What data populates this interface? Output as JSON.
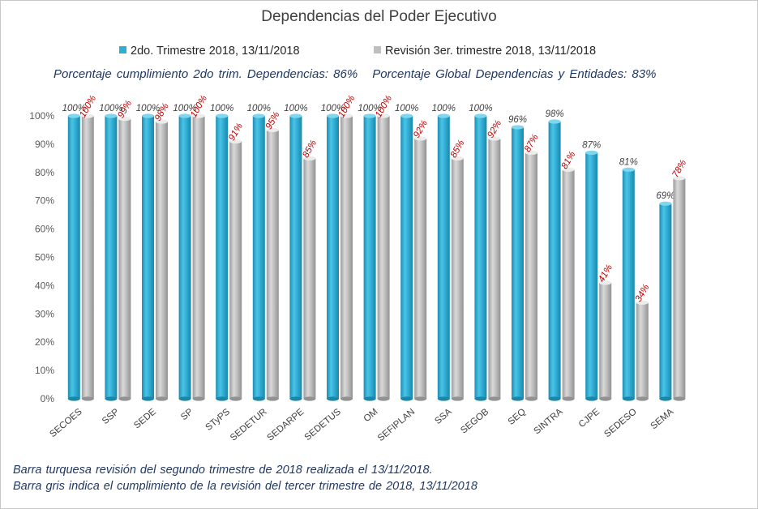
{
  "chart_data": {
    "type": "bar",
    "title": "Dependencias del Poder Ejecutivo",
    "categories": [
      "SECOES",
      "SSP",
      "SEDE",
      "SP",
      "STyPS",
      "SEDETUR",
      "SEDARPE",
      "SEDETUS",
      "OM",
      "SEFIPLAN",
      "SSA",
      "SEGOB",
      "SEQ",
      "SINTRA",
      "CJPE",
      "SEDESO",
      "SEMA"
    ],
    "series": [
      {
        "name": "2do. Trimestre 2018, 13/11/2018",
        "color": "#2faed3",
        "label_color": "#404040",
        "values": [
          100,
          100,
          100,
          100,
          100,
          100,
          100,
          100,
          100,
          100,
          100,
          100,
          96,
          98,
          87,
          81,
          69
        ]
      },
      {
        "name": "Revisión 3er. trimestre 2018, 13/11/2018",
        "color": "#bfbfbf",
        "label_color": "#c00000",
        "values": [
          100,
          99,
          98,
          100,
          91,
          95,
          85,
          100,
          100,
          92,
          85,
          92,
          87,
          81,
          41,
          34,
          78
        ]
      }
    ],
    "ylim": [
      0,
      100
    ],
    "yticks": [
      "0%",
      "10%",
      "20%",
      "30%",
      "40%",
      "50%",
      "60%",
      "70%",
      "80%",
      "90%",
      "100%"
    ],
    "grid": false,
    "legend_position": "top"
  },
  "summary": {
    "dependencias": "Porcentaje cumplimiento 2do trim. Dependencias: 86%",
    "global": "Porcentaje Global Dependencias y Entidades: 83%"
  },
  "notes": [
    "Barra turquesa revisión del segundo trimestre de 2018 realizada el 13/11/2018.",
    "Barra gris indica el cumplimiento de la revisión del tercer trimestre de 2018, 13/11/2018"
  ]
}
